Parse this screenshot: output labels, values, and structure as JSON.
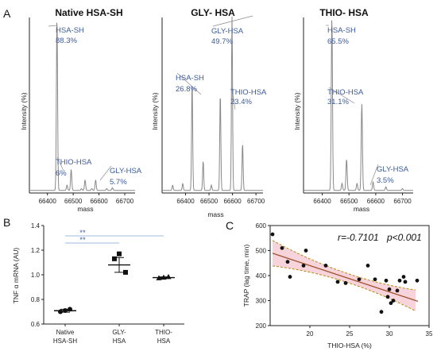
{
  "panel_labels": {
    "a": "A",
    "b": "B",
    "c": "C"
  },
  "chart_data": [
    {
      "type": "line",
      "id": "native",
      "title": "Native HSA-SH",
      "xlabel": "mass",
      "ylabel": "Intensity (%)",
      "xticks": [
        66400,
        66500,
        66600,
        66700
      ],
      "xlim": [
        66330,
        66740
      ],
      "peaks": [
        {
          "x": 66437,
          "y": 100
        },
        {
          "x": 66476,
          "y": 3
        },
        {
          "x": 66492,
          "y": 12
        },
        {
          "x": 66532,
          "y": 1
        },
        {
          "x": 66546,
          "y": 6
        },
        {
          "x": 66572,
          "y": 1
        },
        {
          "x": 66587,
          "y": 6
        },
        {
          "x": 66630,
          "y": 1
        },
        {
          "x": 66652,
          "y": 1.5
        }
      ],
      "annotations": [
        {
          "label": "HSA-SH",
          "value": "88.3%",
          "x": 66437
        },
        {
          "label": "THIO-HSA",
          "value": "6%",
          "x": 66492
        },
        {
          "label": "GLY-HSA",
          "value": "5.7%",
          "x": 66587
        }
      ]
    },
    {
      "type": "line",
      "id": "gly",
      "title": "GLY- HSA",
      "xlabel": "mass",
      "ylabel": "Intensity (%)",
      "xticks": [
        66400,
        66500,
        66600,
        66700
      ],
      "xlim": [
        66300,
        66730
      ],
      "peaks": [
        {
          "x": 66345,
          "y": 3
        },
        {
          "x": 66388,
          "y": 4
        },
        {
          "x": 66428,
          "y": 62
        },
        {
          "x": 66475,
          "y": 17
        },
        {
          "x": 66510,
          "y": 3
        },
        {
          "x": 66548,
          "y": 56
        },
        {
          "x": 66598,
          "y": 100
        },
        {
          "x": 66643,
          "y": 27
        }
      ],
      "annotations": [
        {
          "label": "HSA-SH",
          "value": "26.8%",
          "x": 66428
        },
        {
          "label": "THIO-HSA",
          "value": "23.4%",
          "x": 66548
        },
        {
          "label": "GLY-HSA",
          "value": "49.7%",
          "x": 66598
        }
      ]
    },
    {
      "type": "line",
      "id": "thio",
      "title": "THIO- HSA",
      "xlabel": "mass",
      "ylabel": "Intensity (%)",
      "xticks": [
        66400,
        66500,
        66600,
        66700
      ],
      "xlim": [
        66330,
        66740
      ],
      "peaks": [
        {
          "x": 66436,
          "y": 100
        },
        {
          "x": 66474,
          "y": 4
        },
        {
          "x": 66491,
          "y": 18
        },
        {
          "x": 66530,
          "y": 4
        },
        {
          "x": 66548,
          "y": 50
        },
        {
          "x": 66590,
          "y": 5
        },
        {
          "x": 66638,
          "y": 2
        },
        {
          "x": 66700,
          "y": 1
        }
      ],
      "annotations": [
        {
          "label": "HSA-SH",
          "value": "65.5%",
          "x": 66436
        },
        {
          "label": "THIO-HSA",
          "value": "31.1%",
          "x": 66548
        },
        {
          "label": "GLY-HSA",
          "value": "3.5%",
          "x": 66590
        }
      ]
    },
    {
      "type": "scatter",
      "id": "tnf",
      "ylabel": "TNF α mRNA (AU)",
      "ylim": [
        0.6,
        1.4
      ],
      "yticks": [
        "0.6",
        "0.8",
        "1.0",
        "1.2",
        "1.4"
      ],
      "categories": [
        "Native\nHSA-SH",
        "GLY-\nHSA",
        "THIO-\nHSA"
      ],
      "markers": [
        "circle",
        "square",
        "triangle"
      ],
      "values": [
        [
          0.7,
          0.71,
          0.72
        ],
        [
          1.02,
          1.13,
          1.17
        ],
        [
          0.975,
          0.98,
          0.985
        ]
      ],
      "means": [
        0.708,
        1.08,
        0.977
      ],
      "errors": [
        0.012,
        0.06,
        0.006
      ],
      "significance": [
        {
          "from": 0,
          "to": 2,
          "label": "**"
        },
        {
          "from": 0,
          "to": 1,
          "label": "**"
        }
      ]
    },
    {
      "type": "scatter",
      "id": "trap",
      "xlabel": "THIO-HSA (%)",
      "ylabel": "TRAP (lag time, min)",
      "xlim": [
        15,
        35
      ],
      "ylim": [
        200,
        600
      ],
      "xticks": [
        20,
        25,
        30,
        35
      ],
      "yticks": [
        200,
        300,
        400,
        500,
        600
      ],
      "r_label": "r=-0.7101",
      "p_label": "p<0.001",
      "points": [
        {
          "x": 15.3,
          "y": 565
        },
        {
          "x": 16.5,
          "y": 510
        },
        {
          "x": 17.2,
          "y": 455
        },
        {
          "x": 17.5,
          "y": 395
        },
        {
          "x": 19.2,
          "y": 440
        },
        {
          "x": 19.5,
          "y": 500
        },
        {
          "x": 22.0,
          "y": 440
        },
        {
          "x": 23.5,
          "y": 375
        },
        {
          "x": 24.5,
          "y": 370
        },
        {
          "x": 26.2,
          "y": 385
        },
        {
          "x": 27.3,
          "y": 440
        },
        {
          "x": 28.2,
          "y": 385
        },
        {
          "x": 29.0,
          "y": 255
        },
        {
          "x": 29.6,
          "y": 380
        },
        {
          "x": 29.8,
          "y": 315
        },
        {
          "x": 30.0,
          "y": 345
        },
        {
          "x": 30.2,
          "y": 290
        },
        {
          "x": 30.5,
          "y": 300
        },
        {
          "x": 31.0,
          "y": 340
        },
        {
          "x": 31.3,
          "y": 380
        },
        {
          "x": 31.8,
          "y": 395
        },
        {
          "x": 32.0,
          "y": 375
        },
        {
          "x": 33.5,
          "y": 380
        }
      ],
      "fit": {
        "slope": -10.5,
        "intercept": 650
      }
    }
  ],
  "colors": {
    "annotation": "#3b5a9a",
    "sig_bar": "#7fa6d0",
    "ci_fill": "#f7d4dc",
    "ci_line": "#b38a10",
    "fit_line": "#a0522d"
  }
}
